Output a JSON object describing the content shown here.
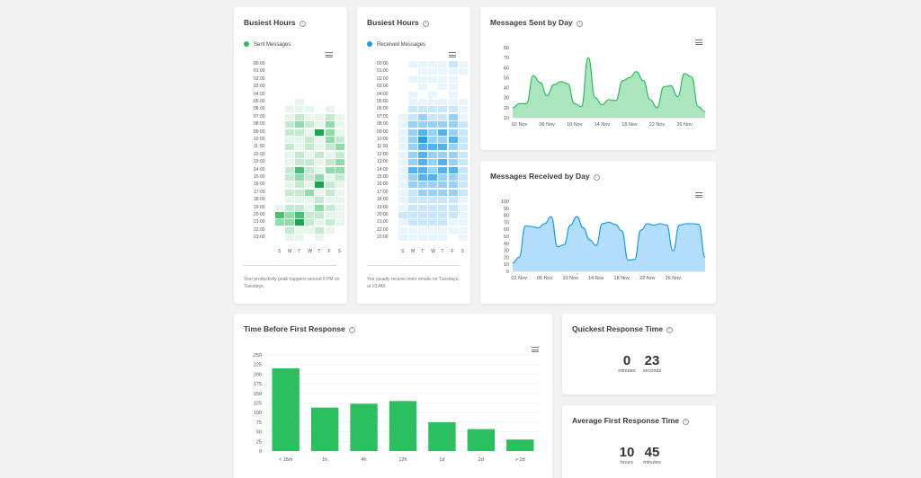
{
  "colors": {
    "green": "#2cbf60",
    "blue": "#1a9bf0",
    "green_fill": "#8fdca8",
    "blue_fill": "#99d3fa"
  },
  "busiest_sent": {
    "title": "Busiest Hours",
    "legend": "Sent Messages",
    "hours": [
      "00:00",
      "01:00",
      "02:00",
      "03:00",
      "04:00",
      "05:00",
      "06:00",
      "07:00",
      "08:00",
      "09:00",
      "10:00",
      "11:00",
      "12:00",
      "13:00",
      "14:00",
      "15:00",
      "16:00",
      "17:00",
      "18:00",
      "19:00",
      "20:00",
      "21:00",
      "22:00",
      "23:00"
    ],
    "days": [
      "S",
      "M",
      "T",
      "W",
      "T",
      "F",
      "S"
    ],
    "footnote": "Your productivity peak happens around 9 PM on Tuesdays.",
    "matrix": [
      [
        0,
        0,
        0,
        0,
        0,
        0,
        0
      ],
      [
        0,
        0,
        0,
        0,
        0,
        0,
        0
      ],
      [
        0,
        0,
        0,
        0,
        0,
        0,
        0
      ],
      [
        0,
        0,
        0,
        0,
        0,
        0,
        0
      ],
      [
        0,
        0,
        0,
        0,
        0,
        0,
        0
      ],
      [
        0,
        0,
        1,
        0,
        0,
        0,
        0
      ],
      [
        0,
        1,
        1,
        1,
        0,
        1,
        0
      ],
      [
        0,
        1,
        2,
        1,
        1,
        2,
        1
      ],
      [
        0,
        2,
        3,
        2,
        1,
        3,
        1
      ],
      [
        0,
        2,
        2,
        1,
        5,
        3,
        1
      ],
      [
        0,
        1,
        1,
        2,
        1,
        3,
        2
      ],
      [
        0,
        2,
        1,
        2,
        1,
        2,
        3
      ],
      [
        0,
        1,
        2,
        1,
        2,
        1,
        2
      ],
      [
        0,
        1,
        2,
        2,
        1,
        2,
        3
      ],
      [
        0,
        2,
        4,
        2,
        1,
        3,
        3
      ],
      [
        0,
        2,
        3,
        2,
        3,
        1,
        2
      ],
      [
        0,
        1,
        2,
        1,
        5,
        2,
        1
      ],
      [
        0,
        2,
        2,
        3,
        1,
        2,
        1
      ],
      [
        0,
        1,
        1,
        1,
        2,
        1,
        1
      ],
      [
        1,
        2,
        2,
        1,
        3,
        2,
        1
      ],
      [
        4,
        3,
        4,
        2,
        2,
        1,
        1
      ],
      [
        3,
        3,
        5,
        2,
        1,
        2,
        1
      ],
      [
        0,
        2,
        1,
        1,
        2,
        1,
        0
      ],
      [
        0,
        1,
        1,
        0,
        1,
        0,
        0
      ]
    ]
  },
  "busiest_received": {
    "title": "Busiest Hours",
    "legend": "Received Messages",
    "hours": [
      "00:00",
      "01:00",
      "02:00",
      "03:00",
      "04:00",
      "05:00",
      "06:00",
      "07:00",
      "08:00",
      "09:00",
      "10:00",
      "11:00",
      "12:00",
      "13:00",
      "14:00",
      "15:00",
      "16:00",
      "17:00",
      "18:00",
      "19:00",
      "20:00",
      "21:00",
      "22:00",
      "23:00"
    ],
    "days": [
      "S",
      "M",
      "T",
      "W",
      "T",
      "F",
      "S"
    ],
    "footnote": "You usually receive more emails on Tuesdays, at 10 AM.",
    "matrix": [
      [
        0,
        1,
        1,
        1,
        1,
        2,
        1
      ],
      [
        0,
        0,
        1,
        1,
        1,
        1,
        1
      ],
      [
        0,
        1,
        1,
        1,
        1,
        1,
        0
      ],
      [
        0,
        0,
        1,
        0,
        1,
        1,
        0
      ],
      [
        0,
        1,
        0,
        1,
        0,
        1,
        0
      ],
      [
        0,
        1,
        1,
        1,
        1,
        1,
        1
      ],
      [
        0,
        2,
        2,
        2,
        2,
        2,
        1
      ],
      [
        1,
        2,
        3,
        2,
        2,
        3,
        1
      ],
      [
        1,
        3,
        3,
        3,
        3,
        3,
        2
      ],
      [
        1,
        3,
        4,
        3,
        4,
        3,
        2
      ],
      [
        1,
        3,
        5,
        3,
        3,
        4,
        2
      ],
      [
        1,
        3,
        4,
        4,
        4,
        3,
        2
      ],
      [
        1,
        3,
        4,
        3,
        3,
        3,
        2
      ],
      [
        1,
        3,
        4,
        3,
        4,
        3,
        2
      ],
      [
        1,
        4,
        4,
        3,
        4,
        4,
        2
      ],
      [
        1,
        3,
        4,
        4,
        3,
        3,
        2
      ],
      [
        1,
        3,
        3,
        3,
        3,
        3,
        2
      ],
      [
        1,
        2,
        3,
        3,
        3,
        3,
        2
      ],
      [
        1,
        2,
        2,
        2,
        2,
        2,
        1
      ],
      [
        1,
        2,
        2,
        2,
        2,
        2,
        1
      ],
      [
        2,
        2,
        2,
        2,
        2,
        2,
        1
      ],
      [
        1,
        2,
        2,
        2,
        2,
        1,
        1
      ],
      [
        1,
        1,
        1,
        1,
        1,
        1,
        1
      ],
      [
        1,
        1,
        1,
        1,
        1,
        0,
        1
      ]
    ]
  },
  "sent_by_day": {
    "title": "Messages Sent by Day",
    "chart_data": {
      "type": "area",
      "x_ticks": [
        "02 Nov",
        "06 Nov",
        "10 Nov",
        "14 Nov",
        "18 Nov",
        "22 Nov",
        "26 Nov"
      ],
      "ylim": [
        10,
        80
      ],
      "y_ticks": [
        10,
        20,
        30,
        40,
        50,
        60,
        70,
        80
      ],
      "values": [
        20,
        24,
        24,
        52,
        45,
        32,
        43,
        46,
        44,
        24,
        21,
        70,
        30,
        23,
        28,
        27,
        47,
        50,
        56,
        47,
        28,
        20,
        41,
        42,
        31,
        54,
        51,
        21,
        16
      ]
    }
  },
  "received_by_day": {
    "title": "Messages Received by Day",
    "chart_data": {
      "type": "area",
      "x_ticks": [
        "02 Nov",
        "06 Nov",
        "10 Nov",
        "14 Nov",
        "18 Nov",
        "22 Nov",
        "26 Nov"
      ],
      "ylim": [
        0,
        100
      ],
      "y_ticks": [
        0,
        10,
        20,
        30,
        40,
        50,
        60,
        70,
        80,
        90,
        100
      ],
      "values": [
        12,
        20,
        65,
        64,
        62,
        68,
        78,
        35,
        38,
        66,
        78,
        62,
        45,
        37,
        68,
        70,
        67,
        58,
        16,
        17,
        59,
        68,
        66,
        68,
        66,
        29,
        66,
        68,
        68,
        67,
        20
      ]
    }
  },
  "first_response": {
    "title": "Time Before First Response",
    "chart_data": {
      "type": "bar",
      "categories": [
        "< 15m",
        "1h",
        "4h",
        "12h",
        "1d",
        "2d",
        "> 2d"
      ],
      "values": [
        215,
        113,
        123,
        130,
        75,
        57,
        30
      ],
      "ylim": [
        0,
        250
      ],
      "y_ticks": [
        0,
        25,
        50,
        75,
        100,
        125,
        150,
        175,
        200,
        225,
        250
      ]
    }
  },
  "quickest": {
    "title": "Quickest Response Time",
    "v1": "0",
    "u1": "minutes",
    "v2": "23",
    "u2": "seconds"
  },
  "average": {
    "title": "Average First Response Time",
    "v1": "10",
    "u1": "hours",
    "v2": "45",
    "u2": "minutes"
  }
}
